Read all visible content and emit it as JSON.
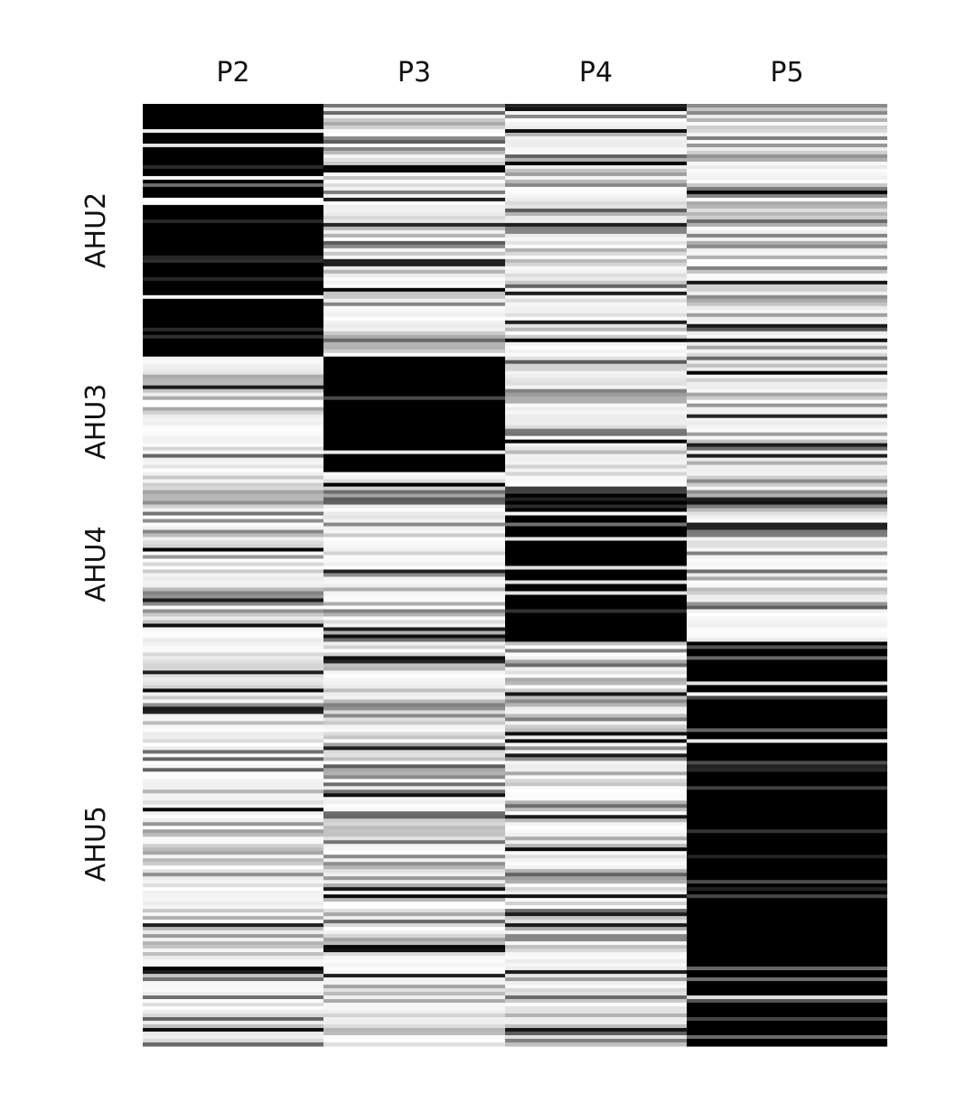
{
  "chart_data": {
    "type": "heatmap",
    "title": "",
    "xlabel": "",
    "ylabel": "",
    "columns": [
      "P2",
      "P3",
      "P4",
      "P5"
    ],
    "row_groups": [
      {
        "label": "AHU2",
        "rows": 70
      },
      {
        "label": "AHU3",
        "rows": 36
      },
      {
        "label": "AHU4",
        "rows": 43
      },
      {
        "label": "AHU5",
        "rows": 112
      }
    ],
    "value_range": [
      0,
      1
    ],
    "colors": {
      "high": "#000000",
      "low": "#ffffff"
    },
    "grid": false,
    "block_pattern": "Each column is dark for the rows of the group it matches: P2-AHU2, P3-AHU3, P4-AHU4, P5-AHU5",
    "seed": 7
  }
}
